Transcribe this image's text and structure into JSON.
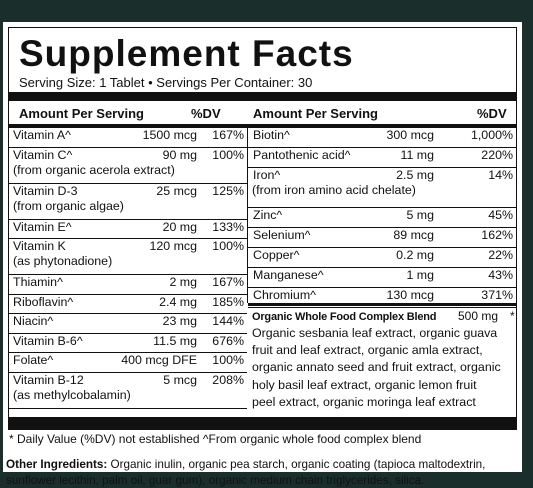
{
  "title": "Supplement Facts",
  "serving_line": "Serving Size: 1 Tablet • Servings Per Container: 30",
  "headers": {
    "amount_left": "Amount Per Serving",
    "dv_left": "%DV",
    "amount_right": "Amount Per Serving",
    "dv_right": "%DV"
  },
  "left_rows": [
    {
      "name": "Vitamin A^",
      "amount": "1500 mcg",
      "dv": "167%"
    },
    {
      "name": "Vitamin C^",
      "amount": "90 mg",
      "dv": "100%",
      "sub": "(from organic acerola extract)"
    },
    {
      "name": "Vitamin D-3",
      "amount": "25 mcg",
      "dv": "125%",
      "sub": "(from organic algae)"
    },
    {
      "name": "Vitamin E^",
      "amount": "20 mg",
      "dv": "133%"
    },
    {
      "name": "Vitamin K",
      "amount": "120 mcg",
      "dv": "100%",
      "sub": "(as phytonadione)"
    },
    {
      "name": "Thiamin^",
      "amount": "2 mg",
      "dv": "167%"
    },
    {
      "name": "Riboflavin^",
      "amount": "2.4 mg",
      "dv": "185%"
    },
    {
      "name": "Niacin^",
      "amount": "23 mg",
      "dv": "144%"
    },
    {
      "name": "Vitamin B-6^",
      "amount": "11.5 mg",
      "dv": "676%"
    },
    {
      "name": "Folate^",
      "amount": "400 mcg DFE",
      "dv": "100%"
    },
    {
      "name": "Vitamin B-12",
      "amount": "5 mcg",
      "dv": "208%",
      "sub": "(as methylcobalamin)"
    }
  ],
  "right_rows": [
    {
      "name": "Biotin^",
      "amount": "300 mcg",
      "dv": "1,000%"
    },
    {
      "name": "Pantothenic acid^",
      "amount": "11 mg",
      "dv": "220%"
    },
    {
      "name": "Iron^",
      "amount": "2.5 mg",
      "dv": "14%",
      "sub": "(from iron amino acid chelate)"
    },
    {
      "name": "Zinc^",
      "amount": "5 mg",
      "dv": "45%"
    },
    {
      "name": "Selenium^",
      "amount": "89 mcg",
      "dv": "162%"
    },
    {
      "name": "Copper^",
      "amount": "0.2 mg",
      "dv": "22%"
    },
    {
      "name": "Manganese^",
      "amount": "1 mg",
      "dv": "43%"
    },
    {
      "name": "Chromium^",
      "amount": "130 mcg",
      "dv": "371%"
    }
  ],
  "blend": {
    "name": "Organic Whole Food Complex Blend",
    "amount": "500 mg",
    "dv": "*",
    "lines": [
      "Organic sesbania leaf extract, organic guava",
      "fruit and leaf extract, organic amla extract,",
      "organic annato seed and fruit extract, organic",
      "holy basil leaf extract, organic lemon fruit",
      "peel extract, organic moringa leaf extract"
    ]
  },
  "footnote": "* Daily Value (%DV) not established     ^From organic whole food complex blend",
  "other": {
    "label": "Other Ingredients:",
    "line1": " Organic inulin, organic pea starch, organic coating (tapioca maltodextrin,",
    "line2": "sunflower lecithin, palm oil, guar gum), organic medium chain triglycerides, silica."
  }
}
